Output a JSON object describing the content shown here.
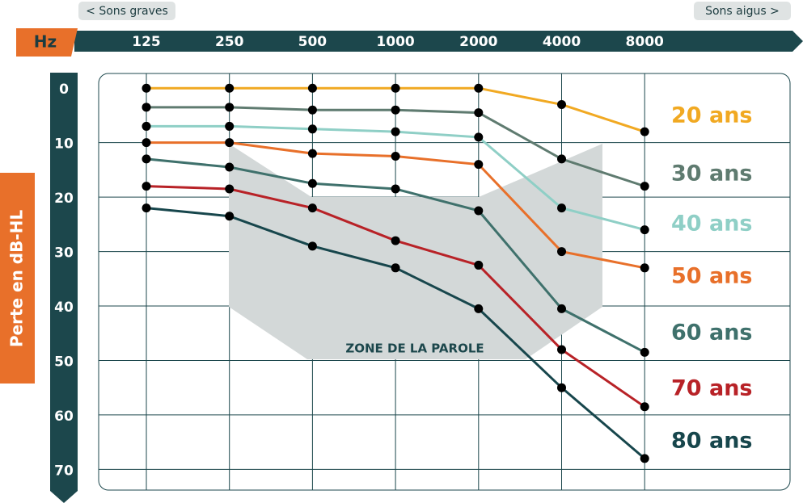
{
  "chart_data": {
    "type": "line",
    "low_label": "< Sons graves",
    "high_label": "Sons aigus >",
    "x_label": "Hz",
    "y_label": "Perte en dB-HL",
    "annotation": "ZONE DE LA PAROLE",
    "categories": [
      "125",
      "250",
      "500",
      "1000",
      "2000",
      "4000",
      "8000"
    ],
    "ylim": [
      -2.7,
      73.8
    ],
    "y_inverted": true,
    "yticks": [
      0,
      10,
      20,
      30,
      40,
      50,
      60,
      70
    ],
    "grid": true,
    "series": [
      {
        "name": "20 ans",
        "color": "#f1a922",
        "values": [
          0,
          0,
          0,
          0,
          0,
          3,
          8
        ]
      },
      {
        "name": "30 ans",
        "color": "#5f7b70",
        "values": [
          3.5,
          3.5,
          4,
          4,
          4.5,
          13,
          18
        ]
      },
      {
        "name": "40 ans",
        "color": "#8fcfc6",
        "values": [
          7,
          7,
          7.5,
          8,
          9,
          22,
          26
        ]
      },
      {
        "name": "50 ans",
        "color": "#e8702a",
        "values": [
          10,
          10,
          12,
          12.5,
          14,
          30,
          33
        ]
      },
      {
        "name": "60 ans",
        "color": "#3f716c",
        "values": [
          13,
          14.5,
          17.5,
          18.5,
          22.5,
          40.5,
          48.5
        ]
      },
      {
        "name": "70 ans",
        "color": "#b82227",
        "values": [
          18,
          18.5,
          22,
          28,
          32.5,
          48,
          58.5
        ]
      },
      {
        "name": "80 ans",
        "color": "#17464c",
        "values": [
          22,
          23.5,
          29,
          33,
          40.5,
          55,
          68
        ]
      }
    ]
  }
}
